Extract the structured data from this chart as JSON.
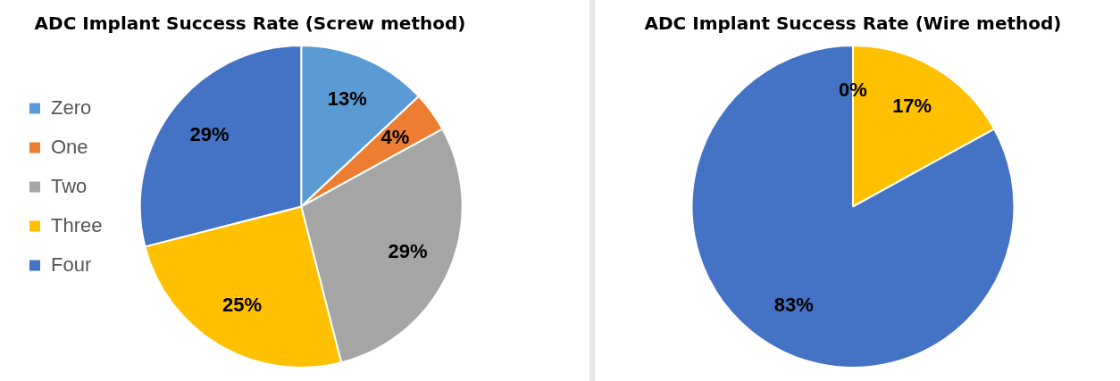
{
  "chart_data": [
    {
      "type": "pie",
      "title": "ADC Implant Success Rate (Screw method)",
      "categories": [
        "Zero",
        "One",
        "Two",
        "Three",
        "Four"
      ],
      "values": [
        13,
        4,
        29,
        25,
        29
      ],
      "value_labels": [
        "13%",
        "4%",
        "29%",
        "25%",
        "29%"
      ],
      "colors": [
        "#5b9bd5",
        "#ed7d31",
        "#a5a5a5",
        "#ffc000",
        "#4472c4"
      ],
      "legend": "left"
    },
    {
      "type": "pie",
      "title": "ADC Implant Success Rate (Wire method)",
      "categories": [
        null,
        null,
        null,
        null,
        null
      ],
      "values": [
        0,
        0,
        0,
        17,
        83
      ],
      "value_labels": [
        "0%",
        null,
        null,
        "17%",
        "83%"
      ],
      "colors": [
        "#5b9bd5",
        "#ed7d31",
        "#a5a5a5",
        "#ffc000",
        "#4472c4"
      ],
      "legend": false
    }
  ]
}
